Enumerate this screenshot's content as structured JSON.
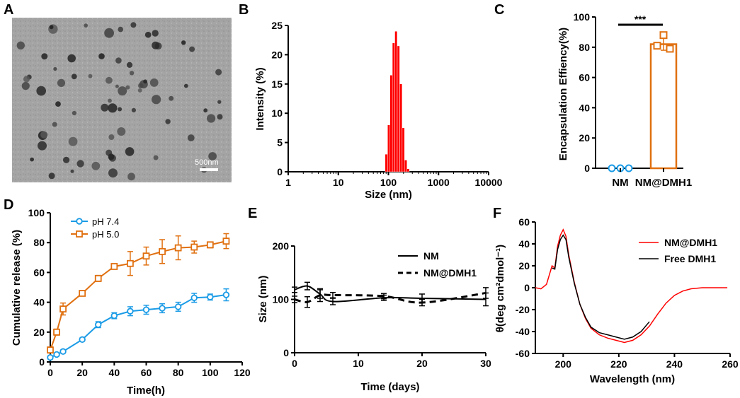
{
  "panel_labels": [
    "A",
    "B",
    "C",
    "D",
    "E",
    "F"
  ],
  "tem": {
    "scale_bar_label": "500nm"
  },
  "chart_data": [
    {
      "panel": "B",
      "type": "bar",
      "xlabel": "Size (nm)",
      "ylabel": "Intensity (%)",
      "xscale": "log",
      "xlim": [
        1,
        10000
      ],
      "ylim": [
        0,
        25
      ],
      "xticks": [
        "1",
        "10",
        "100",
        "1000",
        "10000"
      ],
      "yticks": [
        "0",
        "5",
        "10",
        "15",
        "20",
        "25"
      ],
      "color": "#ff0000",
      "bins": [
        {
          "size": 91,
          "value": 3.0
        },
        {
          "size": 102,
          "value": 8.0
        },
        {
          "size": 114,
          "value": 16.5
        },
        {
          "size": 127,
          "value": 22.0
        },
        {
          "size": 142,
          "value": 24.0
        },
        {
          "size": 159,
          "value": 21.5
        },
        {
          "size": 178,
          "value": 15.0
        },
        {
          "size": 199,
          "value": 7.5
        },
        {
          "size": 222,
          "value": 2.0
        },
        {
          "size": 248,
          "value": 0.5
        }
      ]
    },
    {
      "panel": "C",
      "type": "bar",
      "categories": [
        "NM",
        "NM@DMH1"
      ],
      "ylabel": "Encapsulation Effiency(%)",
      "ylim": [
        0,
        100
      ],
      "yticks": [
        "0",
        "20",
        "40",
        "60",
        "80",
        "100"
      ],
      "values": [
        0,
        82
      ],
      "error": [
        0,
        4
      ],
      "points": [
        [
          0,
          0,
          0
        ],
        [
          88,
          81,
          79
        ]
      ],
      "significance": "***",
      "colors": [
        "#1a9be6",
        "#e07010"
      ]
    },
    {
      "panel": "D",
      "type": "line",
      "xlabel": "Time(h)",
      "ylabel": "Cumulative release (%)",
      "xlim": [
        0,
        120
      ],
      "ylim": [
        0,
        100
      ],
      "xticks": [
        "0",
        "20",
        "40",
        "60",
        "80",
        "100",
        "120"
      ],
      "yticks": [
        "0",
        "20",
        "40",
        "60",
        "80",
        "100"
      ],
      "x": [
        0,
        4,
        8,
        20,
        30,
        40,
        50,
        60,
        70,
        80,
        90,
        100,
        110
      ],
      "series": [
        {
          "name": "pH 7.4",
          "color": "#1a9be6",
          "marker": "circle",
          "values": [
            3,
            5,
            7,
            15,
            25,
            31,
            34,
            35,
            36,
            37,
            43,
            43.5,
            45
          ],
          "error": [
            1,
            1,
            1,
            1,
            2,
            2,
            3,
            3,
            3,
            3,
            3,
            2,
            4
          ]
        },
        {
          "name": "pH 5.0",
          "color": "#e07010",
          "marker": "square",
          "values": [
            8,
            20,
            35.5,
            46,
            56,
            64,
            66,
            71,
            74,
            76.5,
            77,
            78.5,
            81
          ],
          "error": [
            2,
            2,
            4,
            1,
            2,
            1,
            8,
            6,
            8,
            8,
            4,
            2,
            5
          ]
        }
      ]
    },
    {
      "panel": "E",
      "type": "line",
      "xlabel": "Time (days)",
      "ylabel": "Size (nm)",
      "xlim": [
        0,
        30
      ],
      "ylim": [
        0,
        200
      ],
      "xticks": [
        "0",
        "10",
        "20",
        "30"
      ],
      "yticks": [
        "0",
        "100",
        "200"
      ],
      "x": [
        0,
        2,
        4,
        6,
        14,
        20,
        30
      ],
      "series": [
        {
          "name": "NM",
          "dash": "solid",
          "values": [
            118,
            125,
            110,
            96,
            103,
            102,
            100
          ],
          "error": [
            5,
            7,
            8,
            6,
            5,
            8,
            12
          ]
        },
        {
          "name": "NM@DMH1",
          "dash": "dashed",
          "values": [
            100,
            95,
            108,
            108,
            106,
            94,
            112
          ],
          "error": [
            6,
            10,
            12,
            5,
            5,
            6,
            10
          ]
        }
      ]
    },
    {
      "panel": "F",
      "type": "line",
      "xlabel": "Wavelength (nm)",
      "ylabel": "θ(deg cm²dmol⁻¹)",
      "xlim": [
        190,
        260
      ],
      "ylim": [
        -60,
        60
      ],
      "xticks": [
        "200",
        "220",
        "240",
        "260"
      ],
      "yticks": [
        "-60",
        "-40",
        "-20",
        "0",
        "20",
        "40",
        "60"
      ],
      "series": [
        {
          "name": "NM@DMH1",
          "color": "#ff0000",
          "points": [
            [
              190,
              0
            ],
            [
              192,
              -1
            ],
            [
              194,
              3
            ],
            [
              196,
              20
            ],
            [
              197,
              18
            ],
            [
              198,
              38
            ],
            [
              199,
              48
            ],
            [
              200,
              53
            ],
            [
              201,
              47
            ],
            [
              202,
              30
            ],
            [
              204,
              5
            ],
            [
              206,
              -15
            ],
            [
              208,
              -28
            ],
            [
              210,
              -37
            ],
            [
              213,
              -43
            ],
            [
              216,
              -46
            ],
            [
              219,
              -48
            ],
            [
              222,
              -50
            ],
            [
              225,
              -48
            ],
            [
              228,
              -43
            ],
            [
              231,
              -35
            ],
            [
              234,
              -24
            ],
            [
              237,
              -14
            ],
            [
              240,
              -7
            ],
            [
              243,
              -3
            ],
            [
              246,
              -1
            ],
            [
              250,
              0
            ],
            [
              255,
              0
            ],
            [
              259,
              0
            ]
          ]
        },
        {
          "name": "Free DMH1",
          "color": "#000000",
          "points": [
            [
              196,
              18
            ],
            [
              197,
              17
            ],
            [
              198,
              35
            ],
            [
              199,
              44
            ],
            [
              200,
              48
            ],
            [
              201,
              44
            ],
            [
              202,
              28
            ],
            [
              204,
              4
            ],
            [
              206,
              -15
            ],
            [
              208,
              -27
            ],
            [
              210,
              -36
            ],
            [
              213,
              -41
            ],
            [
              216,
              -43
            ],
            [
              219,
              -45
            ],
            [
              222,
              -47
            ],
            [
              225,
              -45
            ],
            [
              228,
              -40
            ],
            [
              230,
              -34
            ],
            [
              231,
              -31
            ]
          ]
        }
      ]
    }
  ]
}
